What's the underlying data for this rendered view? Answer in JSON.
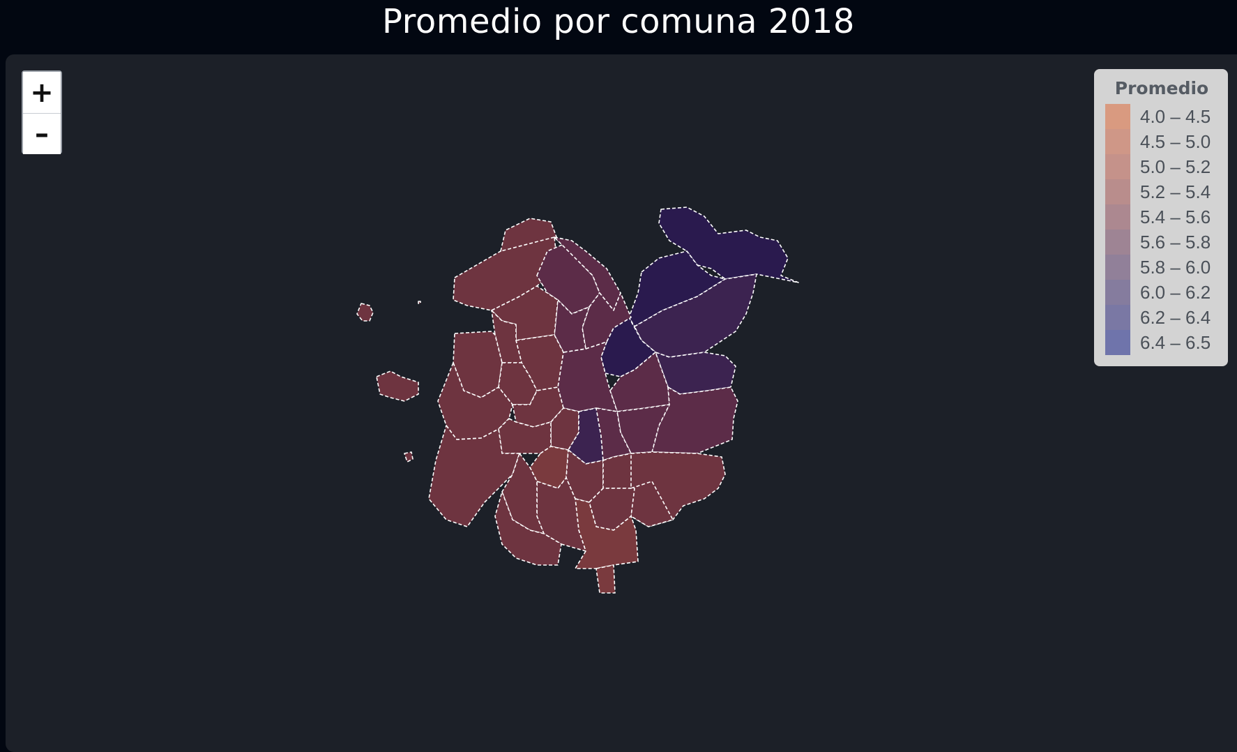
{
  "title": "Promedio por comuna 2018",
  "zoom": {
    "in_label": "+",
    "out_label": "–"
  },
  "legend": {
    "title": "Promedio",
    "items": [
      {
        "label": "4.0 – 4.5",
        "color": "#d99a80"
      },
      {
        "label": "4.5 – 5.0",
        "color": "#cf9787"
      },
      {
        "label": "5.0 – 5.2",
        "color": "#c5928a"
      },
      {
        "label": "5.2 – 5.4",
        "color": "#b98d8c"
      },
      {
        "label": "5.4 – 5.6",
        "color": "#ac8890"
      },
      {
        "label": "5.6 – 5.8",
        "color": "#9e8494"
      },
      {
        "label": "5.8 – 6.0",
        "color": "#918099"
      },
      {
        "label": "6.0 – 6.2",
        "color": "#857c9e"
      },
      {
        "label": "6.2 – 6.4",
        "color": "#7a78a4"
      },
      {
        "label": "6.4 – 6.5",
        "color": "#6f74ab"
      }
    ]
  },
  "map": {
    "border_color": "#ffffff",
    "fill_colors": {
      "dark_red": "#6e3440",
      "brick": "#7a3a3e",
      "plum": "#5c2c48",
      "purple": "#3c2350",
      "violet": "#2a1a4e"
    }
  }
}
